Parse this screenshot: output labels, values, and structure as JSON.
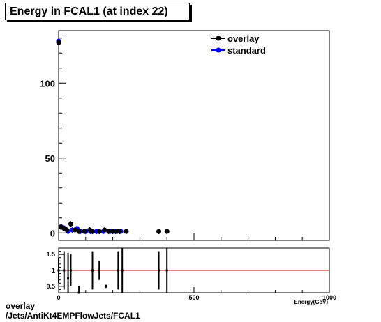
{
  "title": "Energy in FCAL1 (at index 22)",
  "footer": {
    "line1": "overlay",
    "line2": "/Jets/AntiKt4EMPFlowJets/FCAL1"
  },
  "colors": {
    "overlay": "#000000",
    "standard": "#0000ff",
    "ratio_line": "#cc0000"
  },
  "chart_data": [
    {
      "type": "scatter",
      "xlim": [
        0,
        1000
      ],
      "ylim": [
        -5,
        135
      ],
      "yticks": [
        0,
        50,
        100
      ],
      "xticks": [
        0,
        500,
        1000
      ],
      "legend_position": "top-right",
      "series": [
        {
          "name": "overlay",
          "color": "#000000",
          "points": [
            [
              0,
              127
            ],
            [
              8,
              4
            ],
            [
              20,
              3
            ],
            [
              30,
              2
            ],
            [
              45,
              6
            ],
            [
              60,
              2
            ],
            [
              75,
              1
            ],
            [
              95,
              1
            ],
            [
              115,
              2
            ],
            [
              125,
              1
            ],
            [
              150,
              1
            ],
            [
              170,
              2
            ],
            [
              185,
              1
            ],
            [
              200,
              1
            ],
            [
              215,
              1
            ],
            [
              225,
              1
            ],
            [
              250,
              1
            ],
            [
              370,
              1
            ],
            [
              400,
              1
            ]
          ]
        },
        {
          "name": "standard",
          "color": "#0000ff",
          "points": [
            [
              0,
              128
            ],
            [
              10,
              4
            ],
            [
              22,
              3
            ],
            [
              35,
              1
            ],
            [
              50,
              2
            ],
            [
              68,
              3
            ],
            [
              80,
              1
            ],
            [
              100,
              1
            ],
            [
              118,
              1
            ],
            [
              140,
              1
            ],
            [
              165,
              1
            ],
            [
              190,
              1
            ],
            [
              210,
              1
            ],
            [
              230,
              1
            ]
          ]
        }
      ]
    },
    {
      "type": "scatter",
      "xlim": [
        0,
        1000
      ],
      "ylim": [
        0.3,
        1.7
      ],
      "yticks": [
        0.5,
        1,
        1.5
      ],
      "xticks": [
        0,
        500,
        1000
      ],
      "xlabel": "Energy(GeV)",
      "reference_line": 1,
      "points": [
        [
          0,
          1,
          0.4
        ],
        [
          20,
          1,
          0.6
        ],
        [
          35,
          0.75,
          0.8
        ],
        [
          45,
          1,
          0.5
        ],
        [
          75,
          0.3,
          0.2
        ],
        [
          125,
          1,
          0.6
        ],
        [
          150,
          1,
          0.3
        ],
        [
          175,
          0.5,
          0.05
        ],
        [
          220,
          1,
          0.6
        ],
        [
          235,
          1,
          0.7
        ],
        [
          370,
          1,
          0.6
        ],
        [
          400,
          1,
          0.7
        ]
      ]
    }
  ],
  "tick_labels": {
    "main_y": [
      "0",
      "50",
      "100"
    ],
    "ratio_y": [
      "0.5",
      "1",
      "1.5"
    ],
    "ratio_x": [
      "0",
      "500",
      "1000"
    ]
  }
}
